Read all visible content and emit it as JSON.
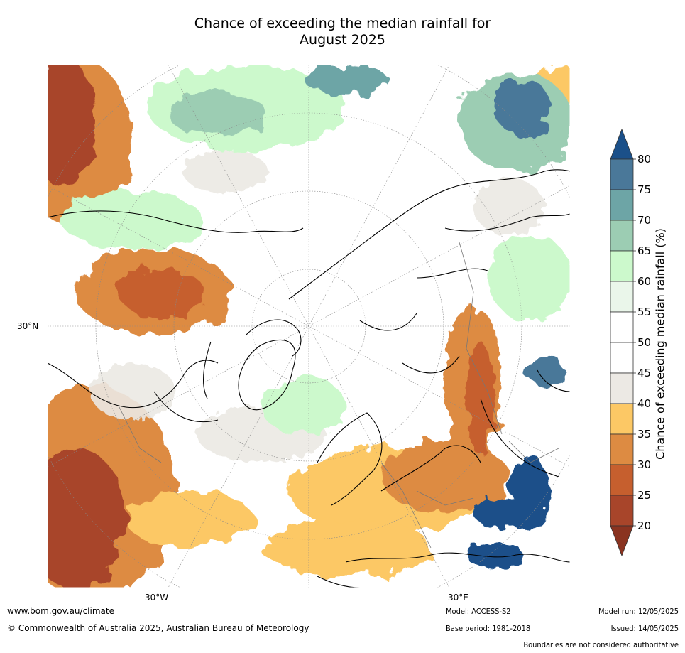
{
  "title_line1": "Chance of exceeding the median rainfall for",
  "title_line2": "August 2025",
  "axes": {
    "lat_label": "30°N",
    "lon_labels": [
      "30°W",
      "30°E"
    ]
  },
  "colorbar": {
    "title": "Chance of exceeding median rainfall (%)",
    "ticks": [
      "20",
      "25",
      "30",
      "35",
      "40",
      "45",
      "50",
      "55",
      "60",
      "65",
      "70",
      "75",
      "80"
    ],
    "colors": [
      "#a8452a",
      "#c65f2e",
      "#dd8b42",
      "#fcc865",
      "#ece9e4",
      "#ffffff",
      "#ffffff",
      "#eaf6ea",
      "#ccf9cc",
      "#9ccdb3",
      "#6da5a6",
      "#4a7899"
    ],
    "under_color": "#8a3320",
    "over_color": "#1b5089"
  },
  "footer": {
    "url": "www.bom.gov.au/climate",
    "copyright": "© Commonwealth of Australia 2025, Australian Bureau of Meteorology",
    "model": "Model: ACCESS-S2",
    "base_period": "Base period: 1981-2018",
    "model_run": "Model run: 12/05/2025",
    "issued": "Issued: 14/05/2025",
    "disclaimer": "Boundaries are not considered authoritative"
  }
}
